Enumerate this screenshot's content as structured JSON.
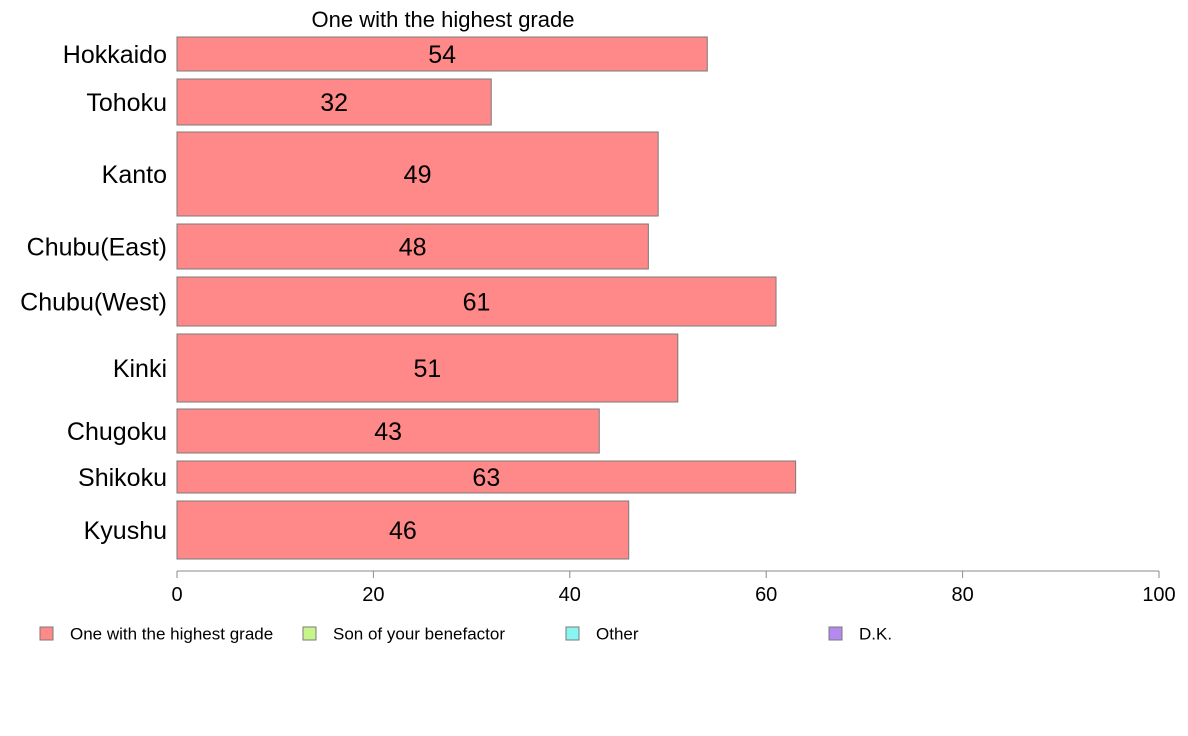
{
  "chart_data": {
    "type": "bar",
    "orientation": "horizontal",
    "title": "One with the highest grade",
    "categories": [
      "Hokkaido",
      "Tohoku",
      "Kanto",
      "Chubu(East)",
      "Chubu(West)",
      "Kinki",
      "Chugoku",
      "Shikoku",
      "Kyushu"
    ],
    "series": [
      {
        "name": "One with the highest grade",
        "values": [
          54,
          32,
          49,
          48,
          61,
          51,
          43,
          63,
          46
        ],
        "color": "#ff8888"
      }
    ],
    "xlim": [
      0,
      100
    ],
    "xticks": [
      0,
      20,
      40,
      60,
      80,
      100
    ],
    "grid": false,
    "legend_position": "bottom",
    "legend": [
      {
        "label": "One with the highest grade",
        "color": "#ff8888"
      },
      {
        "label": "Son of your benefactor",
        "color": "#c8f58a"
      },
      {
        "label": "Other",
        "color": "#88f5f0"
      },
      {
        "label": "D.K.",
        "color": "#b48af0"
      }
    ]
  }
}
